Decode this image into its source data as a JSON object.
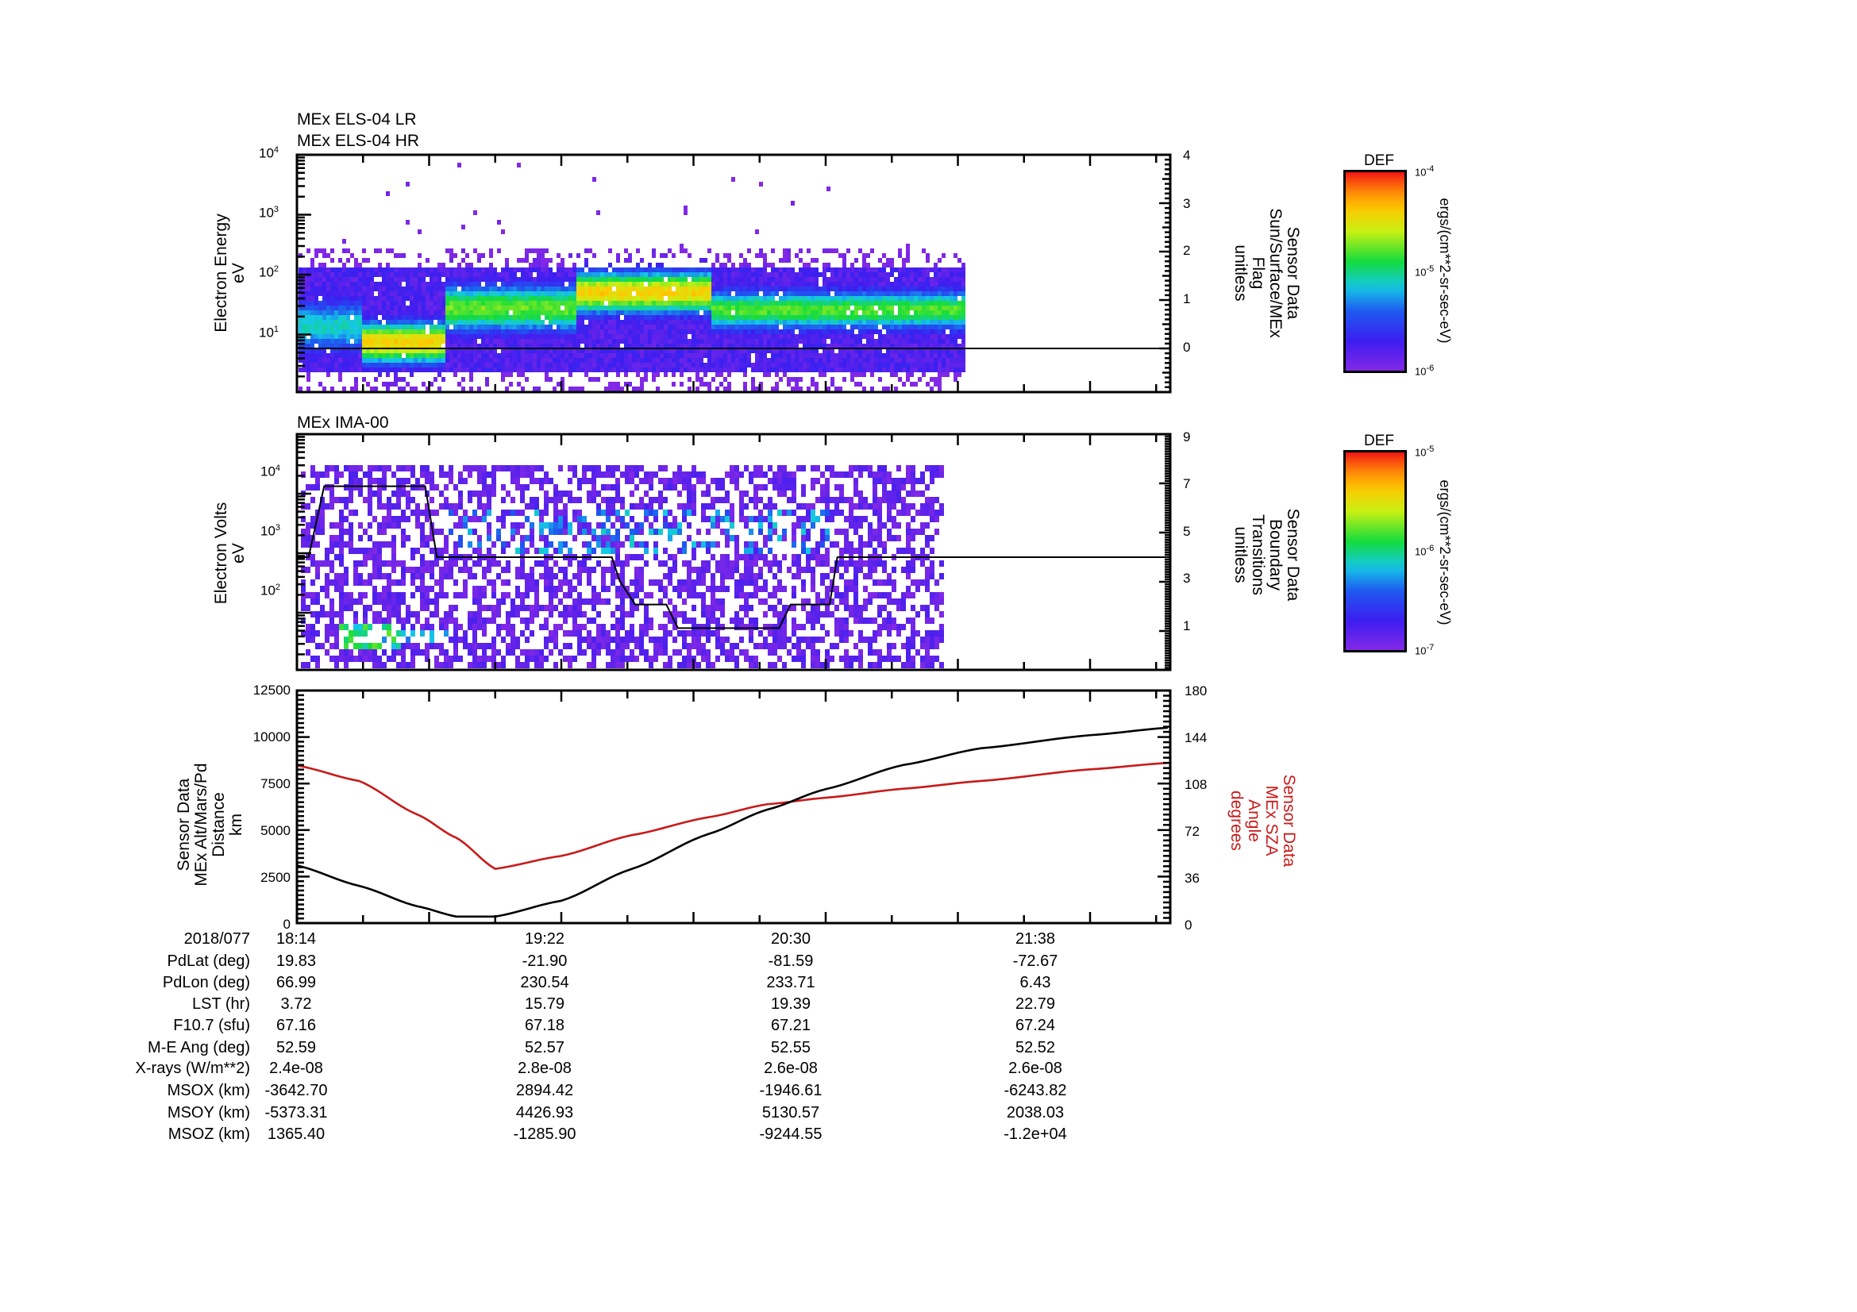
{
  "panels": {
    "els": {
      "titles": [
        "MEx ELS-04 LR",
        "MEx ELS-04 HR"
      ],
      "ylabel": [
        "Electron Energy",
        "eV"
      ],
      "yticks": [
        {
          "base": "10",
          "exp": "4"
        },
        {
          "base": "10",
          "exp": "3"
        },
        {
          "base": "10",
          "exp": "2"
        },
        {
          "base": "10",
          "exp": "1"
        }
      ],
      "right_label": [
        "Sensor Data",
        "Sun/Surface/MEx",
        "Flag",
        "unitless"
      ],
      "right_ticks": [
        "4",
        "3",
        "2",
        "1",
        "0"
      ],
      "colorbar": {
        "title": "DEF",
        "max": {
          "base": "10",
          "exp": "-4"
        },
        "mid": {
          "base": "10",
          "exp": "-5"
        },
        "min": {
          "base": "10",
          "exp": "-6"
        },
        "unit": "ergs/(cm**2-sr-sec-eV)"
      }
    },
    "ima": {
      "titles": [
        "MEx IMA-00"
      ],
      "ylabel": [
        "Electron Volts",
        "eV"
      ],
      "yticks": [
        {
          "base": "10",
          "exp": "4"
        },
        {
          "base": "10",
          "exp": "3"
        },
        {
          "base": "10",
          "exp": "2"
        }
      ],
      "right_label": [
        "Sensor Data",
        "Boundary",
        "Transitions",
        "unitless"
      ],
      "right_ticks": [
        "9",
        "7",
        "5",
        "3",
        "1"
      ],
      "colorbar": {
        "title": "DEF",
        "max": {
          "base": "10",
          "exp": "-5"
        },
        "mid": {
          "base": "10",
          "exp": "-6"
        },
        "min": {
          "base": "10",
          "exp": "-7"
        },
        "unit": "ergs/(cm**2-sr-sec-eV)"
      }
    },
    "orbit": {
      "ylabel": [
        "Sensor Data",
        "MEx Alt/Mars/Pd",
        "Distance",
        "km"
      ],
      "yticks": [
        "12500",
        "10000",
        "7500",
        "5000",
        "2500",
        "0"
      ],
      "right_label": [
        "Sensor Data",
        "MEx SZA",
        "Angle",
        "degrees"
      ],
      "right_ticks": [
        "180",
        "144",
        "108",
        "72",
        "36",
        "0"
      ],
      "colors": {
        "altitude": "#000000",
        "sza": "#c81a1a"
      }
    }
  },
  "chart_data": [
    {
      "type": "heatmap",
      "title": "MEx ELS-04 LR / MEx ELS-04 HR",
      "ylabel": "Electron Energy (eV)",
      "yscale": "log",
      "ylim": [
        1,
        10000
      ],
      "colorbar": {
        "label": "DEF ergs/(cm**2-sr-sec-eV)",
        "range": [
          1e-06,
          0.0001
        ]
      },
      "data_extent_time": [
        "18:14",
        "21:05"
      ],
      "features": [
        {
          "time_range": [
            "18:30",
            "18:50"
          ],
          "energy_peak_eV": 8,
          "intensity": "yellow-orange (~5e-5)"
        },
        {
          "time_range": [
            "19:25",
            "19:55"
          ],
          "energy_peak_eV": 60,
          "intensity": "orange (~7e-5)"
        },
        {
          "time_range": [
            "20:00",
            "21:05"
          ],
          "energy_peak_eV": 30,
          "intensity": "green (~1e-5)"
        }
      ],
      "overlay": {
        "name": "Sun/Surface/MEx Flag",
        "units": "unitless",
        "ylim": [
          -0.9,
          4
        ],
        "value": 0
      }
    },
    {
      "type": "heatmap",
      "title": "MEx IMA-00",
      "ylabel": "Electron Volts (eV)",
      "yscale": "log",
      "ylim": [
        30,
        40000
      ],
      "colorbar": {
        "label": "DEF ergs/(cm**2-sr-sec-eV)",
        "range": [
          1e-07,
          1e-05
        ]
      },
      "data_extent_time": [
        "18:14",
        "21:00"
      ],
      "overlay": {
        "name": "Boundary Transitions",
        "units": "unitless",
        "ylim": [
          -0.5,
          9
        ],
        "x": [
          "18:14",
          "18:17",
          "18:21",
          "18:47",
          "18:50",
          "19:35",
          "19:37",
          "19:41",
          "19:49",
          "19:52",
          "20:18",
          "20:21",
          "20:31",
          "20:33",
          "21:58"
        ],
        "y": [
          4,
          4,
          7,
          7,
          4,
          4,
          3,
          2,
          2,
          1,
          1,
          2,
          2,
          4,
          4
        ]
      }
    },
    {
      "type": "line",
      "xlabel": "2018/077",
      "x": [
        "18:14",
        "18:30",
        "18:45",
        "18:55",
        "19:05",
        "19:22",
        "19:40",
        "20:00",
        "20:15",
        "20:30",
        "20:50",
        "21:10",
        "21:38",
        "21:58"
      ],
      "series": [
        {
          "name": "MEx Alt/Mars/Pd Distance (km)",
          "axis": "left",
          "values": [
            3100,
            2000,
            900,
            350,
            350,
            1200,
            2900,
            4800,
            6100,
            7200,
            8500,
            9400,
            10100,
            10500
          ]
        },
        {
          "name": "MEx SZA Angle (degrees)",
          "axis": "right",
          "values": [
            122,
            110,
            84,
            66,
            42,
            52,
            68,
            82,
            92,
            97,
            104,
            110,
            119,
            124
          ]
        }
      ],
      "ylim_left": [
        0,
        12500
      ],
      "ylim_right": [
        0,
        180
      ],
      "xticks": [
        "18:14",
        "19:22",
        "20:30",
        "21:38"
      ]
    }
  ],
  "ephemeris": {
    "header": {
      "label": "2018/077",
      "values": [
        "18:14",
        "19:22",
        "20:30",
        "21:38"
      ]
    },
    "rows": [
      {
        "label": "PdLat (deg)",
        "values": [
          "19.83",
          "-21.90",
          "-81.59",
          "-72.67"
        ]
      },
      {
        "label": "PdLon (deg)",
        "values": [
          "66.99",
          "230.54",
          "233.71",
          "6.43"
        ]
      },
      {
        "label": "LST (hr)",
        "values": [
          "3.72",
          "15.79",
          "19.39",
          "22.79"
        ]
      },
      {
        "label": "F10.7 (sfu)",
        "values": [
          "67.16",
          "67.18",
          "67.21",
          "67.24"
        ]
      },
      {
        "label": "M-E Ang (deg)",
        "values": [
          "52.59",
          "52.57",
          "52.55",
          "52.52"
        ]
      },
      {
        "label": "X-rays (W/m**2)",
        "values": [
          "2.4e-08",
          "2.8e-08",
          "2.6e-08",
          "2.6e-08"
        ]
      },
      {
        "label": "MSOX (km)",
        "values": [
          "-3642.70",
          "2894.42",
          "-1946.61",
          "-6243.82"
        ]
      },
      {
        "label": "MSOY (km)",
        "values": [
          "-5373.31",
          "4426.93",
          "5130.57",
          "2038.03"
        ]
      },
      {
        "label": "MSOZ (km)",
        "values": [
          "1365.40",
          "-1285.90",
          "-9244.55",
          "-1.2e+04"
        ]
      }
    ]
  }
}
